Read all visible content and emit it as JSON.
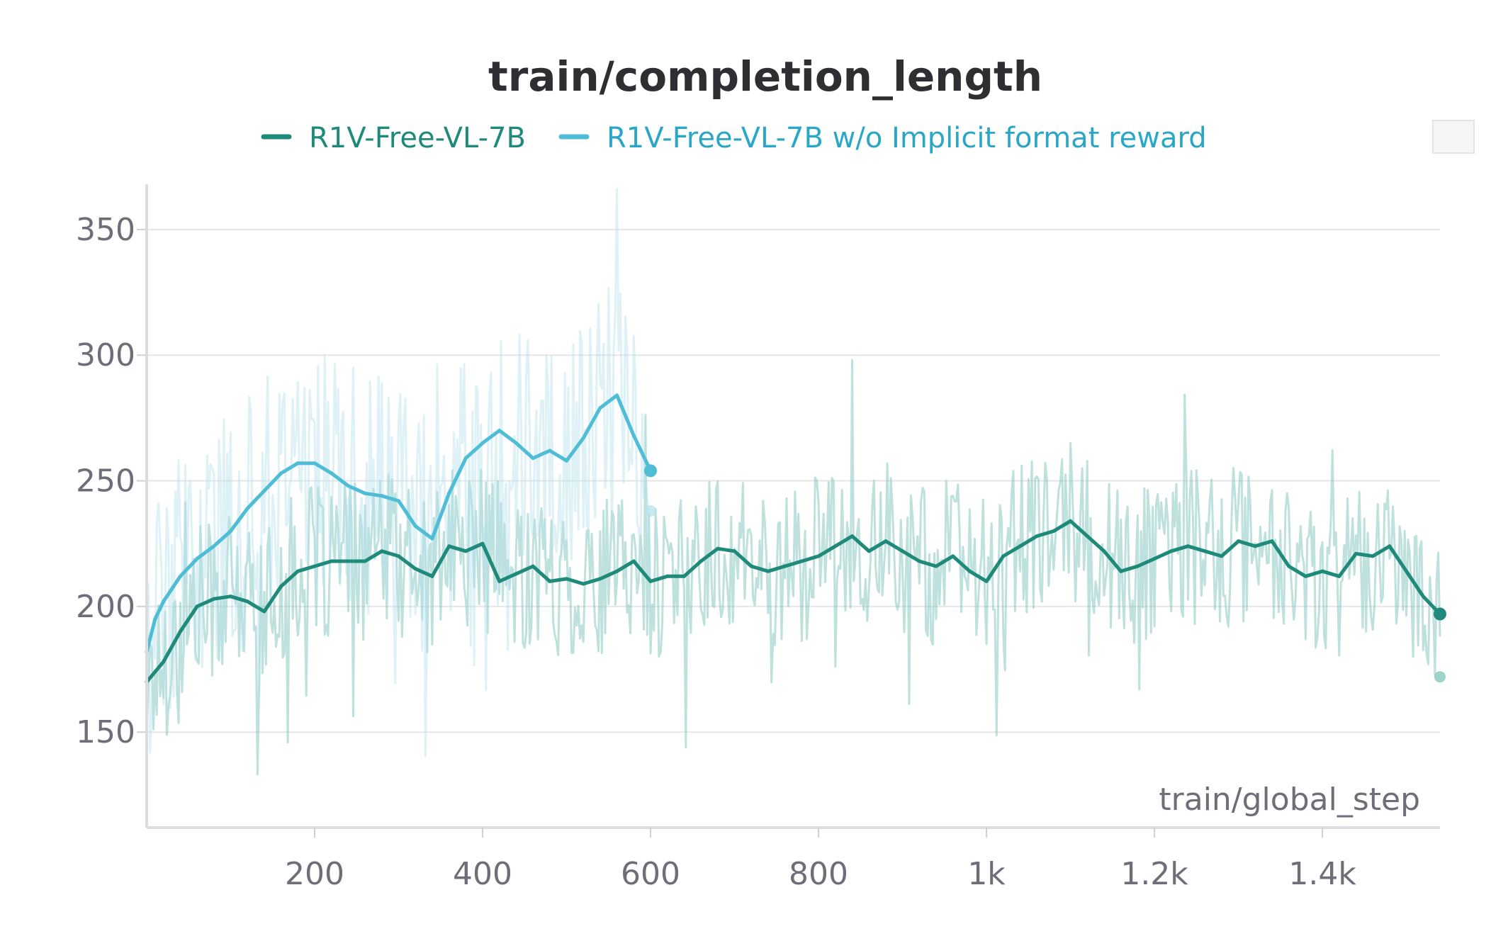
{
  "chart_data": {
    "type": "line",
    "title": "train/completion_length",
    "xlabel": "train/global_step",
    "ylabel": "",
    "xlim": [
      0,
      1540
    ],
    "ylim": [
      112,
      368
    ],
    "grid": true,
    "legend_position": "top",
    "x_ticks": [
      {
        "value": 200,
        "label": "200"
      },
      {
        "value": 400,
        "label": "400"
      },
      {
        "value": 600,
        "label": "600"
      },
      {
        "value": 800,
        "label": "800"
      },
      {
        "value": 1000,
        "label": "1k"
      },
      {
        "value": 1200,
        "label": "1.2k"
      },
      {
        "value": 1400,
        "label": "1.4k"
      }
    ],
    "y_ticks": [
      {
        "value": 150,
        "label": "150"
      },
      {
        "value": 200,
        "label": "200"
      },
      {
        "value": 250,
        "label": "250"
      },
      {
        "value": 300,
        "label": "300"
      },
      {
        "value": 350,
        "label": "350"
      }
    ],
    "series": [
      {
        "name": "R1V-Free-VL-7B",
        "color": "#1f8a7a",
        "raw_color": "#7ec4bb",
        "x": [
          0,
          20,
          40,
          60,
          80,
          100,
          120,
          140,
          160,
          180,
          200,
          220,
          240,
          260,
          280,
          300,
          320,
          340,
          360,
          380,
          400,
          420,
          440,
          460,
          480,
          500,
          520,
          540,
          560,
          580,
          600,
          620,
          640,
          660,
          680,
          700,
          720,
          740,
          760,
          780,
          800,
          820,
          840,
          860,
          880,
          900,
          920,
          940,
          960,
          980,
          1000,
          1020,
          1040,
          1060,
          1080,
          1100,
          1120,
          1140,
          1160,
          1180,
          1200,
          1220,
          1240,
          1260,
          1280,
          1300,
          1320,
          1340,
          1360,
          1380,
          1400,
          1420,
          1440,
          1460,
          1480,
          1500,
          1520,
          1540
        ],
        "values": [
          170,
          178,
          190,
          200,
          203,
          204,
          202,
          198,
          208,
          214,
          216,
          218,
          218,
          218,
          222,
          220,
          215,
          212,
          224,
          222,
          225,
          210,
          213,
          216,
          210,
          211,
          209,
          211,
          214,
          218,
          210,
          212,
          212,
          218,
          223,
          222,
          216,
          214,
          216,
          218,
          220,
          224,
          228,
          222,
          226,
          222,
          218,
          216,
          220,
          214,
          210,
          220,
          224,
          228,
          230,
          234,
          228,
          222,
          214,
          216,
          219,
          222,
          224,
          222,
          220,
          226,
          224,
          226,
          216,
          212,
          214,
          212,
          221,
          220,
          224,
          214,
          204,
          197
        ],
        "last_raw": 172
      },
      {
        "name": "R1V-Free-VL-7B w/o Implicit format reward",
        "color": "#4fbdd6",
        "raw_color": "#b4e1ee",
        "x": [
          0,
          10,
          20,
          40,
          60,
          80,
          100,
          120,
          140,
          160,
          180,
          200,
          220,
          240,
          260,
          280,
          300,
          320,
          340,
          360,
          380,
          400,
          420,
          440,
          460,
          480,
          500,
          520,
          540,
          560,
          580,
          600
        ],
        "values": [
          182,
          195,
          202,
          212,
          219,
          224,
          230,
          239,
          246,
          253,
          257,
          257,
          253,
          248,
          245,
          244,
          242,
          232,
          227,
          245,
          259,
          265,
          270,
          265,
          259,
          262,
          258,
          267,
          279,
          284,
          268,
          254
        ],
        "last_raw": 238
      }
    ]
  }
}
